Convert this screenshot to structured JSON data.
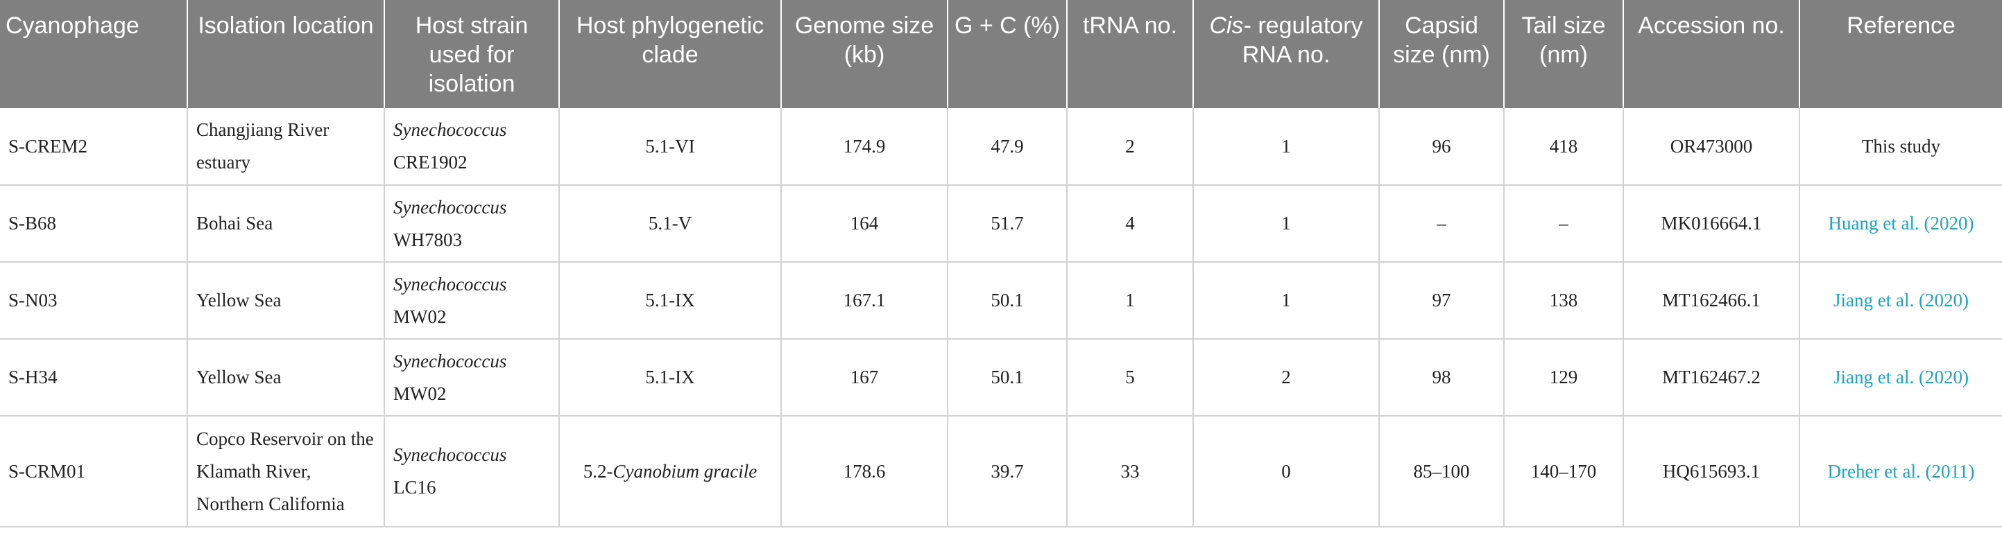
{
  "headers": [
    "Cyanophage",
    "Isolation location",
    "Host strain used for isolation",
    "Host phylogenetic clade",
    "Genome size (kb)",
    "G + C (%)",
    "tRNA no.",
    "regulatory RNA no.",
    "Capsid size (nm)",
    "Tail size (nm)",
    "Accession no.",
    "Reference"
  ],
  "header_cis_italic": "Cis",
  "header_cis_rest": "-",
  "rows": [
    {
      "phage": "S-CREM2",
      "location": "Changjiang River estuary",
      "host_genus": "Synechococcus",
      "host_strain": "CRE1902",
      "clade_prefix": "5.1-VI",
      "clade_italic": "",
      "genome": "174.9",
      "gc": "47.9",
      "trna": "2",
      "cis": "1",
      "capsid": "96",
      "tail": "418",
      "accession": "OR473000",
      "reference": "This study",
      "reference_is_link": false
    },
    {
      "phage": "S-B68",
      "location": "Bohai Sea",
      "host_genus": "Synechococcus",
      "host_strain": "WH7803",
      "clade_prefix": "5.1-V",
      "clade_italic": "",
      "genome": "164",
      "gc": "51.7",
      "trna": "4",
      "cis": "1",
      "capsid": "–",
      "tail": "–",
      "accession": "MK016664.1",
      "reference": "Huang et al. (2020)",
      "reference_is_link": true
    },
    {
      "phage": "S-N03",
      "location": "Yellow Sea",
      "host_genus": "Synechococcus",
      "host_strain": "MW02",
      "clade_prefix": "5.1-IX",
      "clade_italic": "",
      "genome": "167.1",
      "gc": "50.1",
      "trna": "1",
      "cis": "1",
      "capsid": "97",
      "tail": "138",
      "accession": "MT162466.1",
      "reference": "Jiang et al. (2020)",
      "reference_is_link": true
    },
    {
      "phage": "S-H34",
      "location": "Yellow Sea",
      "host_genus": "Synechococcus",
      "host_strain": "MW02",
      "clade_prefix": "5.1-IX",
      "clade_italic": "",
      "genome": "167",
      "gc": "50.1",
      "trna": "5",
      "cis": "2",
      "capsid": "98",
      "tail": "129",
      "accession": "MT162467.2",
      "reference": "Jiang et al. (2020)",
      "reference_is_link": true
    },
    {
      "phage": "S-CRM01",
      "location": "Copco Reservoir on the Klamath River, Northern California",
      "host_genus": "Synechococcus",
      "host_strain": "LC16",
      "clade_prefix": "5.2-",
      "clade_italic": "Cyanobium gracile",
      "genome": "178.6",
      "gc": "39.7",
      "trna": "33",
      "cis": "0",
      "capsid": "85–100",
      "tail": "140–170",
      "accession": "HQ615693.1",
      "reference": "Dreher et al. (2011)",
      "reference_is_link": true
    }
  ],
  "colors": {
    "header_bg": "#808080",
    "header_text": "#ffffff",
    "body_text": "#222222",
    "grid": "#d2d2d2",
    "link": "#1ba4c4"
  }
}
